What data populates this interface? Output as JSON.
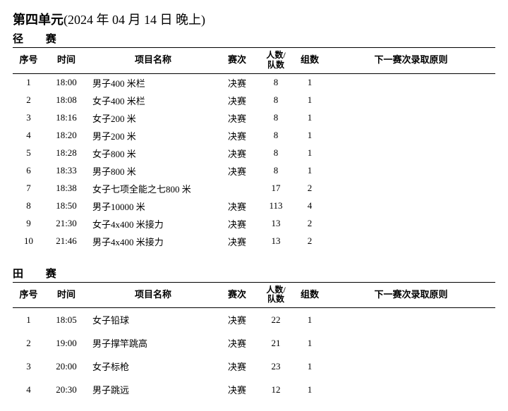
{
  "title_prefix": "第四单元",
  "title_suffix_open": "(",
  "title_year": "2024",
  "title_year_unit": "年",
  "title_month": "04",
  "title_month_unit": "月",
  "title_day": "14",
  "title_day_unit": "日",
  "title_period": "晚上",
  "title_close": ")",
  "sections": [
    {
      "name": "径   赛",
      "key": "track"
    },
    {
      "name": "田   赛",
      "key": "field"
    }
  ],
  "headers": {
    "no": "序号",
    "time": "时间",
    "event": "项目名称",
    "round": "赛次",
    "people_line1": "人数/",
    "people_line2": "队数",
    "groups": "组数",
    "rule": "下一赛次录取原则"
  },
  "track_rows": [
    {
      "no": "1",
      "time": "18:00",
      "event": "男子400 米栏",
      "round": "决赛",
      "people": "8",
      "groups": "1"
    },
    {
      "no": "2",
      "time": "18:08",
      "event": "女子400 米栏",
      "round": "决赛",
      "people": "8",
      "groups": "1"
    },
    {
      "no": "3",
      "time": "18:16",
      "event": "女子200 米",
      "round": "决赛",
      "people": "8",
      "groups": "1"
    },
    {
      "no": "4",
      "time": "18:20",
      "event": "男子200 米",
      "round": "决赛",
      "people": "8",
      "groups": "1"
    },
    {
      "no": "5",
      "time": "18:28",
      "event": "女子800 米",
      "round": "决赛",
      "people": "8",
      "groups": "1"
    },
    {
      "no": "6",
      "time": "18:33",
      "event": "男子800 米",
      "round": "决赛",
      "people": "8",
      "groups": "1"
    },
    {
      "no": "7",
      "time": "18:38",
      "event": "女子七项全能之七800 米",
      "round": "",
      "people": "17",
      "groups": "2"
    },
    {
      "no": "8",
      "time": "18:50",
      "event": "男子10000 米",
      "round": "决赛",
      "people": "113",
      "groups": "4"
    },
    {
      "no": "9",
      "time": "21:30",
      "event": "女子4x400 米接力",
      "round": "决赛",
      "people": "13",
      "groups": "2"
    },
    {
      "no": "10",
      "time": "21:46",
      "event": "男子4x400 米接力",
      "round": "决赛",
      "people": "13",
      "groups": "2"
    }
  ],
  "field_rows": [
    {
      "no": "1",
      "time": "18:05",
      "event": "女子铅球",
      "round": "决赛",
      "people": "22",
      "groups": "1"
    },
    {
      "no": "2",
      "time": "19:00",
      "event": "男子撑竿跳高",
      "round": "决赛",
      "people": "21",
      "groups": "1"
    },
    {
      "no": "3",
      "time": "20:00",
      "event": "女子标枪",
      "round": "决赛",
      "people": "23",
      "groups": "1"
    },
    {
      "no": "4",
      "time": "20:30",
      "event": "男子跳远",
      "round": "决赛",
      "people": "12",
      "groups": "1"
    }
  ]
}
